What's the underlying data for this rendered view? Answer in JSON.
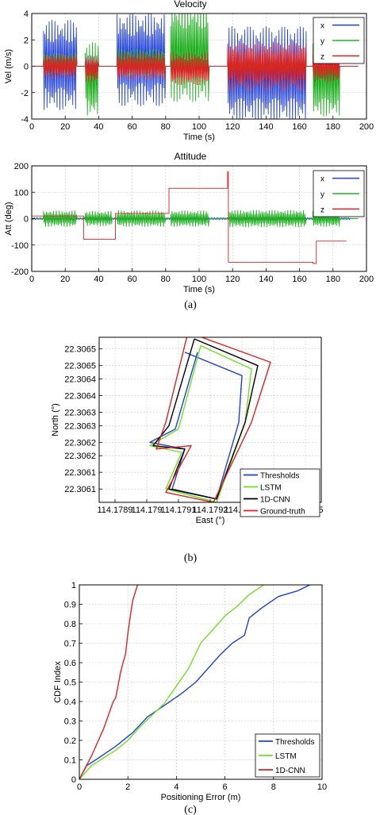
{
  "chart_data": [
    {
      "type": "line",
      "title": "Velocity",
      "xlabel": "Time (s)",
      "ylabel": "Vel (m/s)",
      "xlim": [
        0,
        200
      ],
      "ylim": [
        -4,
        4
      ],
      "xticks": [
        0,
        20,
        40,
        60,
        80,
        100,
        120,
        140,
        160,
        180,
        200
      ],
      "yticks": [
        -4,
        -2,
        0,
        2,
        4
      ],
      "grid": true,
      "legend": "top-right",
      "series": [
        {
          "name": "x",
          "color": "#1f3fd8",
          "segments": [
            {
              "t": [
                7,
                27
              ],
              "amp": 3.4,
              "offset": 0.1
            },
            {
              "t": [
                32,
                40
              ],
              "amp": 0.8,
              "offset": 0
            },
            {
              "t": [
                51,
                80
              ],
              "amp": 3.5,
              "offset": 0.5
            },
            {
              "t": [
                83,
                106
              ],
              "amp": 0.6,
              "offset": 0
            },
            {
              "t": [
                117,
                164
              ],
              "amp": 3.6,
              "offset": -0.6
            },
            {
              "t": [
                168,
                184
              ],
              "amp": 1.0,
              "offset": -0.3
            }
          ]
        },
        {
          "name": "y",
          "color": "#22b022",
          "segments": [
            {
              "t": [
                7,
                27
              ],
              "amp": 0.8,
              "offset": 0.2
            },
            {
              "t": [
                32,
                40
              ],
              "amp": 2.8,
              "offset": -1.0
            },
            {
              "t": [
                51,
                80
              ],
              "amp": 1.0,
              "offset": 0.3
            },
            {
              "t": [
                83,
                106
              ],
              "amp": 3.7,
              "offset": 1.0
            },
            {
              "t": [
                117,
                164
              ],
              "amp": 0.6,
              "offset": 0
            },
            {
              "t": [
                168,
                184
              ],
              "amp": 2.8,
              "offset": -1.0
            }
          ]
        },
        {
          "name": "z",
          "color": "#e02020",
          "segments": [
            {
              "t": [
                7,
                27
              ],
              "amp": 0.9,
              "offset": 0
            },
            {
              "t": [
                32,
                40
              ],
              "amp": 1.0,
              "offset": -0.2
            },
            {
              "t": [
                51,
                80
              ],
              "amp": 1.0,
              "offset": 0
            },
            {
              "t": [
                83,
                106
              ],
              "amp": 1.2,
              "offset": -0.2
            },
            {
              "t": [
                117,
                164
              ],
              "amp": 1.8,
              "offset": 0
            },
            {
              "t": [
                168,
                184
              ],
              "amp": 1.2,
              "offset": 0
            }
          ]
        }
      ]
    },
    {
      "type": "line",
      "title": "Attitude",
      "xlabel": "Time (s)",
      "ylabel": "Att (deg)",
      "xlim": [
        0,
        200
      ],
      "ylim": [
        -200,
        200
      ],
      "xticks": [
        0,
        20,
        40,
        60,
        80,
        100,
        120,
        140,
        160,
        180,
        200
      ],
      "yticks": [
        -200,
        -100,
        0,
        100,
        200
      ],
      "grid": true,
      "legend": "top-right",
      "series": [
        {
          "name": "x",
          "color": "#1f3fd8",
          "segments": [
            {
              "t": [
                0,
                190
              ],
              "amp": 4,
              "offset": 0
            }
          ]
        },
        {
          "name": "y",
          "color": "#22b022",
          "segments": [
            {
              "t": [
                7,
                27
              ],
              "amp": 30,
              "offset": 0
            },
            {
              "t": [
                32,
                48
              ],
              "amp": 28,
              "offset": 0
            },
            {
              "t": [
                51,
                80
              ],
              "amp": 30,
              "offset": 0
            },
            {
              "t": [
                83,
                106
              ],
              "amp": 30,
              "offset": 0
            },
            {
              "t": [
                118,
                164
              ],
              "amp": 32,
              "offset": 0
            },
            {
              "t": [
                168,
                184
              ],
              "amp": 30,
              "offset": 0
            }
          ]
        },
        {
          "name": "z",
          "color": "#e02020",
          "steps": [
            [
              0,
              10
            ],
            [
              29,
              10
            ],
            [
              31,
              -78
            ],
            [
              48,
              -78
            ],
            [
              50,
              20
            ],
            [
              80,
              20
            ],
            [
              82,
              115
            ],
            [
              116,
              115
            ],
            [
              117,
              178
            ],
            [
              117.5,
              -165
            ],
            [
              168,
              -170
            ],
            [
              170,
              -85
            ],
            [
              188,
              -85
            ]
          ]
        }
      ]
    },
    {
      "type": "line",
      "xlabel": "East (°)",
      "ylabel": "North (°)",
      "xlim": [
        114.17885,
        114.17955
      ],
      "ylim": [
        22.30605,
        22.306545
      ],
      "xticks": [
        114.1789,
        114.179,
        114.1791,
        114.1792,
        114.1793,
        114.1794,
        114.1795
      ],
      "xtick_labels": [
        "114.1789",
        "114.179",
        "114.1791",
        "114.1792",
        "114.1793",
        "114.1794",
        "114.1795"
      ],
      "yticks": [
        22.30609,
        22.30614,
        22.30619,
        22.30623,
        22.30628,
        22.30632,
        22.30637,
        22.30642,
        22.30646,
        22.30651
      ],
      "ytick_labels": [
        "22.3061",
        "22.3061",
        "22.3062",
        "22.3062",
        "22.3063",
        "22.3063",
        "22.3064",
        "22.3064",
        "22.3065",
        "22.3065"
      ],
      "grid": true,
      "legend": "bottom-right",
      "series": [
        {
          "name": "Thresholds",
          "color": "#1f3fd8",
          "x": [
            114.17916,
            114.17909,
            114.17901,
            114.17912,
            114.17908,
            114.17922,
            114.17929,
            114.1793,
            114.17912
          ],
          "y": [
            22.3065,
            22.30627,
            22.30623,
            22.30621,
            22.30609,
            22.30606,
            22.30629,
            22.30643,
            22.3065
          ]
        },
        {
          "name": "LSTM",
          "color": "#6fe020",
          "x": [
            114.17917,
            114.1791,
            114.17901,
            114.17911,
            114.17906,
            114.17922,
            114.17931,
            114.17933,
            114.17917
          ],
          "y": [
            22.30652,
            22.30627,
            22.30622,
            22.3062,
            22.30609,
            22.30605,
            22.30629,
            22.30645,
            22.30652
          ]
        },
        {
          "name": "1D-CNN",
          "color": "#000000",
          "x": [
            114.17915,
            114.17907,
            114.17902,
            114.17912,
            114.17907,
            114.17922,
            114.17931,
            114.17935,
            114.17915
          ],
          "y": [
            22.30654,
            22.30628,
            22.30622,
            22.30621,
            22.30609,
            22.30606,
            22.30629,
            22.30646,
            22.30654
          ]
        },
        {
          "name": "Ground-truth",
          "color": "#e02020",
          "x": [
            114.17913,
            114.17906,
            114.17903,
            114.17914,
            114.17906,
            114.17921,
            114.17933,
            114.17939,
            114.17913
          ],
          "y": [
            22.30656,
            22.30629,
            22.30621,
            22.30622,
            22.30608,
            22.30605,
            22.30629,
            22.30647,
            22.30656
          ]
        }
      ]
    },
    {
      "type": "line",
      "xlabel": "Positioning Error (m)",
      "ylabel": "CDF Index",
      "xlim": [
        0,
        10
      ],
      "ylim": [
        0,
        1
      ],
      "xticks": [
        0,
        2,
        4,
        6,
        8,
        10
      ],
      "yticks": [
        0,
        0.1,
        0.2,
        0.3,
        0.4,
        0.5,
        0.6,
        0.7,
        0.8,
        0.9,
        1
      ],
      "ytick_labels": [
        "0",
        "0.1",
        "0.2",
        "0.3",
        "0.4",
        "0.5",
        "0.6",
        "0.7",
        "0.8",
        "0.9",
        "1"
      ],
      "grid": true,
      "legend": "bottom-right",
      "series": [
        {
          "name": "Thresholds",
          "color": "#1f3fd8",
          "x": [
            0,
            0.3,
            0.8,
            1.5,
            2.2,
            2.8,
            3.5,
            4.2,
            4.8,
            5.3,
            5.8,
            6.3,
            6.8,
            7.0,
            7.5,
            8.2,
            9.0,
            9.5
          ],
          "y": [
            0,
            0.07,
            0.11,
            0.17,
            0.24,
            0.32,
            0.38,
            0.44,
            0.5,
            0.57,
            0.64,
            0.7,
            0.74,
            0.83,
            0.88,
            0.94,
            0.97,
            1.0
          ]
        },
        {
          "name": "LSTM",
          "color": "#6fe020",
          "x": [
            0,
            0.5,
            1.0,
            1.5,
            2.0,
            2.5,
            3.0,
            3.5,
            4.0,
            4.5,
            5.0,
            5.5,
            6.0,
            6.5,
            7.0,
            7.6
          ],
          "y": [
            0,
            0.07,
            0.11,
            0.15,
            0.2,
            0.27,
            0.33,
            0.39,
            0.48,
            0.57,
            0.7,
            0.77,
            0.84,
            0.89,
            0.95,
            1.0
          ]
        },
        {
          "name": "1D-CNN",
          "color": "#e02020",
          "x": [
            0,
            0.5,
            1.0,
            1.4,
            1.5,
            1.7,
            1.8,
            1.9,
            2.0,
            2.1,
            2.2,
            2.4
          ],
          "y": [
            0,
            0.12,
            0.26,
            0.4,
            0.42,
            0.55,
            0.6,
            0.64,
            0.75,
            0.84,
            0.92,
            1.0
          ]
        }
      ]
    }
  ],
  "captions": [
    "(a)",
    "(b)",
    "(c)"
  ]
}
